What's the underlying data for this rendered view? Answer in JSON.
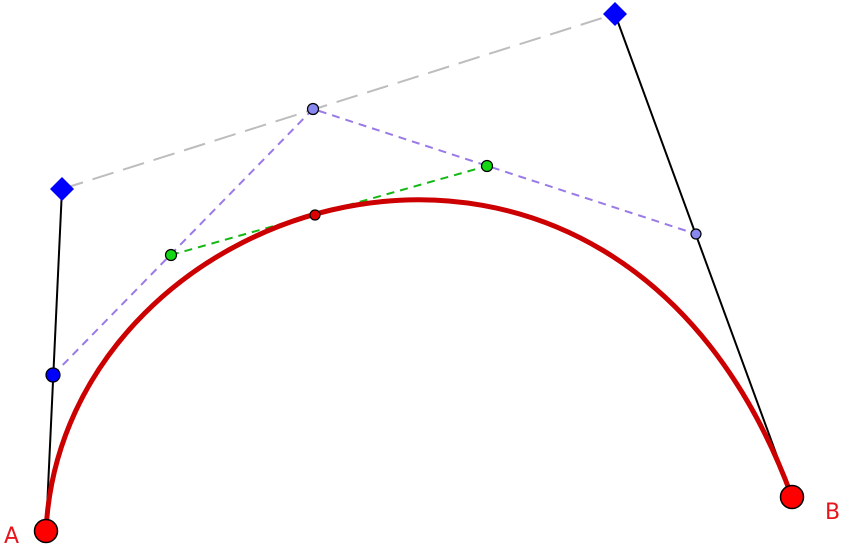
{
  "labels": {
    "start": "A",
    "end": "B"
  },
  "colors": {
    "curve": "#cc0000",
    "endpoint_fill": "#ff0000",
    "control_handle": "#0000ff",
    "control_polygon": "#bdbdbd",
    "first_level": "#9a7ae6",
    "second_level": "#14b814",
    "construction_point": "#8888ee",
    "label": "#e8141b"
  }
}
